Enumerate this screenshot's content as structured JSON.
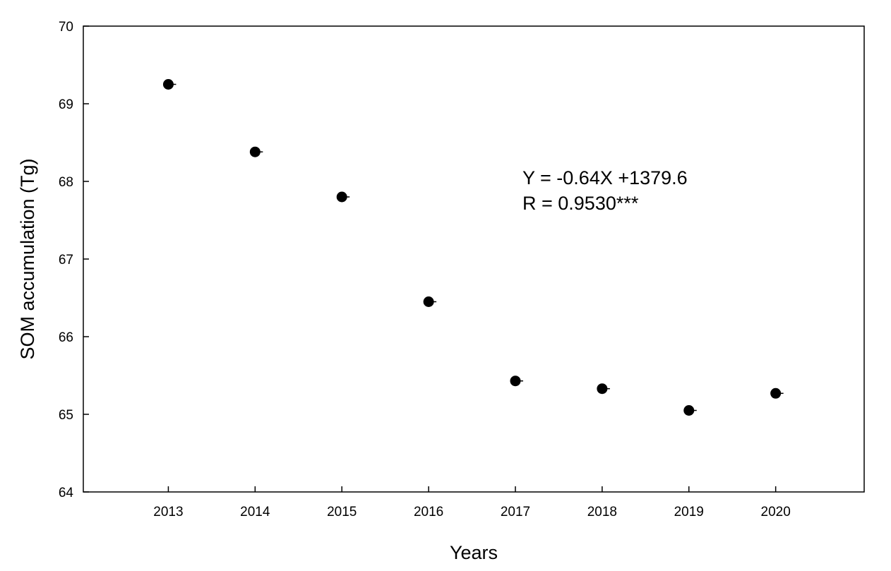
{
  "chart_data": {
    "type": "scatter",
    "title": "",
    "xlabel": "Years",
    "ylabel": "SOM accumulation (Tg)",
    "xlim": [
      2012.02,
      2021.02
    ],
    "ylim": [
      64,
      70
    ],
    "x_ticks": [
      "2013",
      "2014",
      "2015",
      "2016",
      "2017",
      "2018",
      "2019",
      "2020"
    ],
    "y_ticks": [
      "64",
      "65",
      "66",
      "67",
      "68",
      "69",
      "70"
    ],
    "grid": false,
    "legend": "none",
    "points": {
      "x": [
        2013,
        2014,
        2015,
        2016,
        2017,
        2018,
        2019,
        2020
      ],
      "y": [
        69.25,
        68.38,
        67.8,
        66.45,
        65.43,
        65.33,
        65.05,
        65.27
      ]
    },
    "fit_line": {
      "slope": -0.64,
      "intercept": 1379.6
    },
    "annotations": [
      "Y = -0.64X +1379.6",
      "R = 0.9530***"
    ],
    "colors": {
      "marker": "#000000",
      "line": "#000000"
    }
  }
}
